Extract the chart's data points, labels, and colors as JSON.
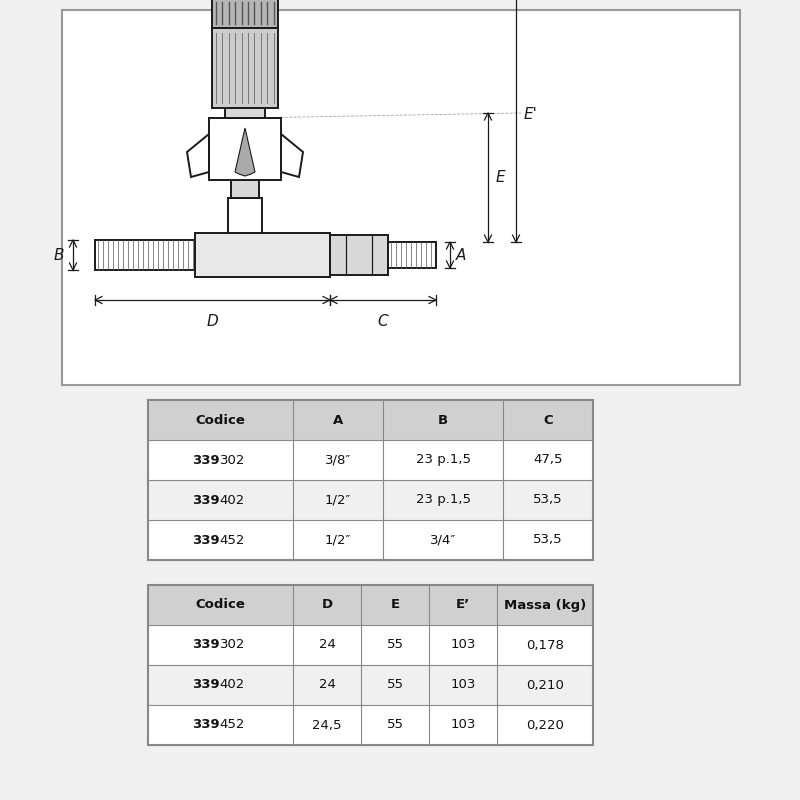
{
  "bg_color": "#f0f0f0",
  "diagram_bg": "#ffffff",
  "diagram_border": "#999999",
  "line_color": "#1a1a1a",
  "dim_color": "#1a1a1a",
  "thread_color": "#555555",
  "head_fill": "#cccccc",
  "nut_fill": "#d8d8d8",
  "body_fill": "#e8e8e8",
  "table1_headers": [
    "Codice",
    "A",
    "B",
    "C"
  ],
  "table1_rows": [
    [
      "339302",
      "3/8″",
      "23 p.1,5",
      "47,5"
    ],
    [
      "339402",
      "1/2″",
      "23 p.1,5",
      "53,5"
    ],
    [
      "339452",
      "1/2″",
      "3/4″",
      "53,5"
    ]
  ],
  "table2_headers": [
    "Codice",
    "D",
    "E",
    "E’",
    "Massa (kg)"
  ],
  "table2_rows": [
    [
      "339302",
      "24",
      "55",
      "103",
      "0,178"
    ],
    [
      "339402",
      "24",
      "55",
      "103",
      "0,210"
    ],
    [
      "339452",
      "24,5",
      "55",
      "103",
      "0,220"
    ]
  ],
  "hdr_bg": "#d0d0d0",
  "row_bg": "#ffffff",
  "row_alt": "#f0f0f0",
  "tbl_border": "#888888",
  "txt_color": "#111111"
}
